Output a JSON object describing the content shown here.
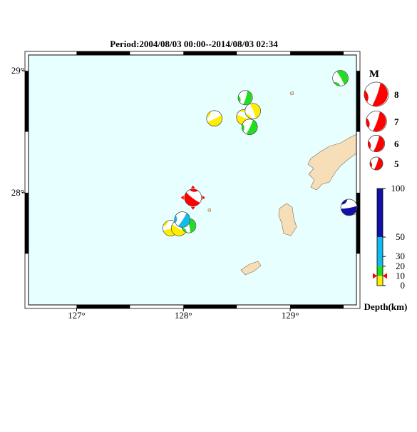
{
  "map": {
    "title": "Period:2004/08/03 00:00--2014/08/03 02:34",
    "lon_range": [
      126.55,
      129.62
    ],
    "lat_range": [
      27.08,
      29.13
    ],
    "lon_ticks": [
      {
        "value": 127,
        "label": "127°"
      },
      {
        "value": 128,
        "label": "128°"
      },
      {
        "value": 129,
        "label": "129°"
      }
    ],
    "lat_ticks": [
      {
        "value": 28,
        "label": "28°"
      },
      {
        "value": 29,
        "label": "29°"
      }
    ],
    "events": [
      {
        "lon": 129.47,
        "lat": 28.94,
        "magnitude": 5.7,
        "depth": 15
      },
      {
        "lon": 128.58,
        "lat": 28.78,
        "magnitude": 5.4,
        "depth": 15
      },
      {
        "lon": 128.29,
        "lat": 28.61,
        "magnitude": 5.7,
        "depth": 5
      },
      {
        "lon": 128.57,
        "lat": 28.62,
        "magnitude": 5.7,
        "depth": 5
      },
      {
        "lon": 128.65,
        "lat": 28.67,
        "magnitude": 5.7,
        "depth": 5
      },
      {
        "lon": 128.62,
        "lat": 28.54,
        "magnitude": 5.7,
        "depth": 15
      },
      {
        "lon": 127.88,
        "lat": 27.71,
        "magnitude": 5.7,
        "depth": 5
      },
      {
        "lon": 127.96,
        "lat": 27.71,
        "magnitude": 5.7,
        "depth": 5
      },
      {
        "lon": 128.05,
        "lat": 27.73,
        "magnitude": 5.4,
        "depth": 15
      },
      {
        "lon": 127.99,
        "lat": 27.78,
        "magnitude": 5.7,
        "depth": 25
      },
      {
        "lon": 129.55,
        "lat": 27.88,
        "magnitude": 5.9,
        "depth": 60
      },
      {
        "lon": 128.09,
        "lat": 27.96,
        "magnitude": 6.1,
        "depth": 10,
        "color": "#ff0000"
      }
    ],
    "legend": {
      "title": "M",
      "magnitudes": [
        8,
        7,
        6,
        5
      ],
      "color": "#ff0000"
    },
    "depth_scale": {
      "ticks": [
        0,
        10,
        20,
        30,
        50,
        100
      ],
      "range": [
        0,
        100
      ],
      "bands": [
        {
          "from": 0,
          "to": 10,
          "color": "#ffee00"
        },
        {
          "from": 10,
          "to": 20,
          "color": "#22dd22"
        },
        {
          "from": 20,
          "to": 50,
          "color": "#11bbee"
        },
        {
          "from": 50,
          "to": 100,
          "color": "#1111aa"
        }
      ],
      "label": "Depth(km)"
    }
  }
}
